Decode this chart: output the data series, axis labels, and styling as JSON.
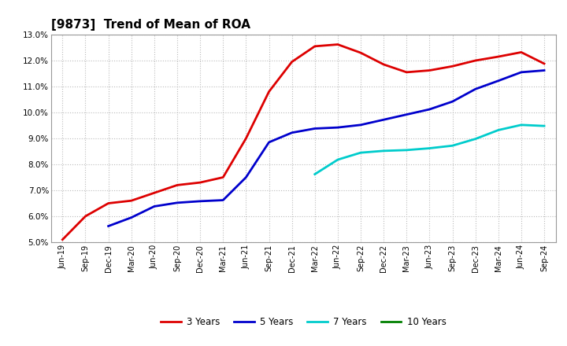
{
  "title": "[9873]  Trend of Mean of ROA",
  "x_labels": [
    "Jun-19",
    "Sep-19",
    "Dec-19",
    "Mar-20",
    "Jun-20",
    "Sep-20",
    "Dec-20",
    "Mar-21",
    "Jun-21",
    "Sep-21",
    "Dec-21",
    "Mar-22",
    "Jun-22",
    "Sep-22",
    "Dec-22",
    "Mar-23",
    "Jun-23",
    "Sep-23",
    "Dec-23",
    "Mar-24",
    "Jun-24",
    "Sep-24"
  ],
  "series_order": [
    "3 Years",
    "5 Years",
    "7 Years",
    "10 Years"
  ],
  "series": {
    "3 Years": {
      "color": "#dd0000",
      "data_x": [
        0,
        1,
        2,
        3,
        4,
        5,
        6,
        7,
        8,
        9,
        10,
        11,
        12,
        13,
        14,
        15,
        16,
        17,
        18,
        19,
        20,
        21
      ],
      "data_y": [
        5.1,
        6.0,
        6.5,
        6.6,
        6.9,
        7.2,
        7.3,
        7.5,
        9.0,
        10.8,
        11.95,
        12.55,
        12.62,
        12.3,
        11.85,
        11.55,
        11.62,
        11.78,
        12.0,
        12.15,
        12.32,
        11.88
      ]
    },
    "5 Years": {
      "color": "#0000cc",
      "data_x": [
        2,
        3,
        4,
        5,
        6,
        7,
        8,
        9,
        10,
        11,
        12,
        13,
        14,
        15,
        16,
        17,
        18,
        19,
        20,
        21
      ],
      "data_y": [
        5.62,
        5.95,
        6.38,
        6.52,
        6.58,
        6.62,
        7.5,
        8.85,
        9.22,
        9.38,
        9.42,
        9.52,
        9.72,
        9.92,
        10.12,
        10.42,
        10.9,
        11.22,
        11.55,
        11.62
      ]
    },
    "7 Years": {
      "color": "#00cccc",
      "data_x": [
        11,
        12,
        13,
        14,
        15,
        16,
        17,
        18,
        19,
        20,
        21
      ],
      "data_y": [
        7.62,
        8.18,
        8.45,
        8.52,
        8.55,
        8.62,
        8.72,
        8.98,
        9.32,
        9.52,
        9.48
      ]
    },
    "10 Years": {
      "color": "#008000",
      "data_x": [],
      "data_y": []
    }
  },
  "ylim": [
    5.0,
    13.0
  ],
  "yticks": [
    5.0,
    6.0,
    7.0,
    8.0,
    9.0,
    10.0,
    11.0,
    12.0,
    13.0
  ],
  "background_color": "#ffffff",
  "grid_color": "#bbbbbb",
  "title_fontsize": 11,
  "legend_labels": [
    "3 Years",
    "5 Years",
    "7 Years",
    "10 Years"
  ],
  "legend_colors": [
    "#dd0000",
    "#0000cc",
    "#00cccc",
    "#008000"
  ]
}
